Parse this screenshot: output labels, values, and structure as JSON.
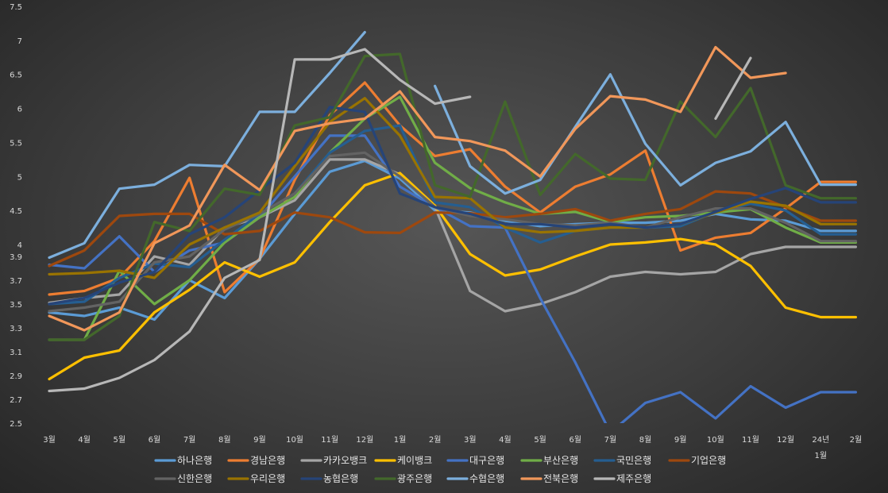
{
  "chart_data": {
    "type": "line",
    "categories": [
      "3월",
      "4월",
      "5월",
      "6월",
      "7월",
      "8월",
      "9월",
      "10월",
      "11월",
      "12월",
      "1월",
      "2월",
      "3월",
      "4월",
      "5월",
      "6월",
      "7월",
      "8월",
      "9월",
      "10월",
      "11월",
      "12월",
      "24년 1월",
      "2월"
    ],
    "y_axis_ticks": [
      2.5,
      2.7,
      2.9,
      3.1,
      3.3,
      3.5,
      3.7,
      3.9,
      4,
      4.5,
      5,
      5.5,
      6,
      6.5,
      7,
      7.5
    ],
    "y_axis_tick_labels": [
      "2.5",
      "2.7",
      "2.9",
      "3.1",
      "3.3",
      "3.5",
      "3.7",
      "3.9",
      "4",
      "4.5",
      "5",
      "5.5",
      "6",
      "6.5",
      "7",
      "7.5"
    ],
    "ylim": [
      2.5,
      7.5
    ],
    "y_scale": "broken: 2.5–4.0 expanded, 4.0–7.5 compressed",
    "legend_position": "bottom",
    "grid": false,
    "series": [
      {
        "name": "하나은행",
        "color": "#5b9bd5",
        "values": [
          3.43,
          3.4,
          3.47,
          3.37,
          3.7,
          3.55,
          3.88,
          4.45,
          5.07,
          5.23,
          4.97,
          4.5,
          4.47,
          4.35,
          4.27,
          4.3,
          4.32,
          4.32,
          4.35,
          4.45,
          4.37,
          4.35,
          4.2,
          4.2
        ]
      },
      {
        "name": "경남은행",
        "color": "#ed7d31",
        "values": [
          3.58,
          3.61,
          3.72,
          4.05,
          4.98,
          3.6,
          3.88,
          4.95,
          5.9,
          6.38,
          5.75,
          5.3,
          5.4,
          4.85,
          4.47,
          4.85,
          5.03,
          5.38,
          3.95,
          4.1,
          4.17,
          4.53,
          4.92,
          4.92
        ]
      },
      {
        "name": "카카오뱅크",
        "color": "#a5a5a5",
        "values": [
          3.51,
          3.55,
          3.58,
          3.9,
          3.83,
          4.25,
          4.4,
          4.65,
          5.25,
          5.25,
          5.03,
          4.55,
          3.61,
          3.44,
          3.5,
          3.6,
          3.73,
          3.77,
          3.75,
          3.77,
          3.92,
          3.98,
          3.98,
          3.98
        ]
      },
      {
        "name": "케이뱅크",
        "color": "#ffc000",
        "values": [
          2.87,
          3.05,
          3.11,
          3.43,
          3.62,
          3.85,
          3.73,
          3.85,
          4.33,
          4.87,
          5.05,
          4.57,
          3.92,
          3.74,
          3.79,
          3.9,
          4.0,
          4.03,
          4.08,
          4.0,
          3.82,
          3.47,
          3.39,
          3.39
        ]
      },
      {
        "name": "대구은행",
        "color": "#4472c4",
        "values": [
          3.83,
          3.8,
          4.12,
          3.77,
          3.95,
          4.03,
          4.4,
          5.0,
          5.6,
          5.6,
          4.85,
          4.55,
          4.27,
          4.25,
          3.55,
          3.01,
          2.42,
          2.67,
          2.76,
          2.54,
          2.81,
          2.63,
          2.76,
          2.76
        ]
      },
      {
        "name": "부산은행",
        "color": "#70ad47",
        "values": [
          3.2,
          3.2,
          3.78,
          3.5,
          3.7,
          4.03,
          4.4,
          4.7,
          5.35,
          5.85,
          6.17,
          5.2,
          4.83,
          4.62,
          4.45,
          4.48,
          4.33,
          4.4,
          4.42,
          4.47,
          4.52,
          4.25,
          4.03,
          4.03
        ]
      },
      {
        "name": "국민은행",
        "color": "#255e91",
        "values": [
          3.5,
          3.52,
          3.72,
          3.84,
          3.81,
          4.07,
          4.45,
          4.75,
          5.35,
          5.67,
          5.75,
          4.62,
          4.55,
          4.25,
          4.03,
          4.2,
          4.25,
          4.25,
          4.27,
          4.48,
          4.6,
          4.5,
          4.15,
          4.15
        ]
      },
      {
        "name": "기업은행",
        "color": "#9e480e",
        "values": [
          3.82,
          3.95,
          4.42,
          4.45,
          4.45,
          4.15,
          4.2,
          4.47,
          4.4,
          4.18,
          4.17,
          4.47,
          4.46,
          4.4,
          4.45,
          4.52,
          4.35,
          4.45,
          4.52,
          4.78,
          4.75,
          4.55,
          4.35,
          4.35
        ]
      },
      {
        "name": "신한은행",
        "color": "#636363",
        "values": [
          3.44,
          3.47,
          3.52,
          3.85,
          3.9,
          4.22,
          4.45,
          4.75,
          5.3,
          5.35,
          5.0,
          4.55,
          4.42,
          4.37,
          4.3,
          4.28,
          4.32,
          4.25,
          4.4,
          4.53,
          4.53,
          4.32,
          4.05,
          4.05
        ]
      },
      {
        "name": "우리은행",
        "color": "#997300",
        "values": [
          3.75,
          3.76,
          3.78,
          3.72,
          4.0,
          4.25,
          4.47,
          5.15,
          5.8,
          6.15,
          5.6,
          4.7,
          4.68,
          4.25,
          4.18,
          4.2,
          4.25,
          4.25,
          4.3,
          4.47,
          4.63,
          4.57,
          4.3,
          4.3
        ]
      },
      {
        "name": "농협은행",
        "color": "#264478",
        "values": [
          3.5,
          3.55,
          3.68,
          3.77,
          4.15,
          4.4,
          4.8,
          5.2,
          6.02,
          5.95,
          4.75,
          4.55,
          4.45,
          4.3,
          4.3,
          4.25,
          4.3,
          4.25,
          4.3,
          4.48,
          4.67,
          4.83,
          4.62,
          4.62
        ]
      },
      {
        "name": "광주은행",
        "color": "#43682b",
        "values": [
          3.2,
          3.2,
          3.4,
          4.33,
          4.2,
          4.82,
          4.73,
          5.75,
          5.87,
          6.77,
          6.8,
          4.87,
          4.7,
          6.1,
          4.73,
          5.33,
          4.97,
          4.95,
          6.1,
          5.58,
          6.3,
          4.87,
          4.68,
          4.68
        ]
      },
      {
        "name": "수협은행",
        "color": "#7cafdd",
        "values": [
          3.89,
          4.02,
          4.82,
          4.88,
          5.17,
          5.15,
          5.95,
          5.95,
          6.52,
          7.12,
          null,
          6.33,
          5.15,
          4.75,
          4.95,
          5.73,
          6.5,
          5.48,
          4.87,
          5.2,
          5.37,
          5.8,
          4.88,
          4.88
        ]
      },
      {
        "name": "전북은행",
        "color": "#f1975a",
        "values": [
          3.4,
          3.28,
          3.43,
          4.02,
          4.28,
          5.17,
          4.8,
          5.67,
          5.78,
          5.85,
          6.25,
          5.58,
          5.52,
          5.38,
          5.0,
          5.7,
          6.18,
          6.13,
          5.95,
          6.9,
          6.45,
          6.52,
          null,
          null
        ]
      },
      {
        "name": "제주은행",
        "color": "#b7b7b7",
        "values": [
          2.77,
          2.79,
          2.88,
          3.03,
          3.27,
          3.72,
          3.87,
          6.72,
          6.72,
          6.87,
          6.42,
          6.07,
          6.17,
          null,
          null,
          null,
          null,
          null,
          null,
          5.85,
          6.74,
          null,
          null,
          null
        ]
      }
    ]
  }
}
